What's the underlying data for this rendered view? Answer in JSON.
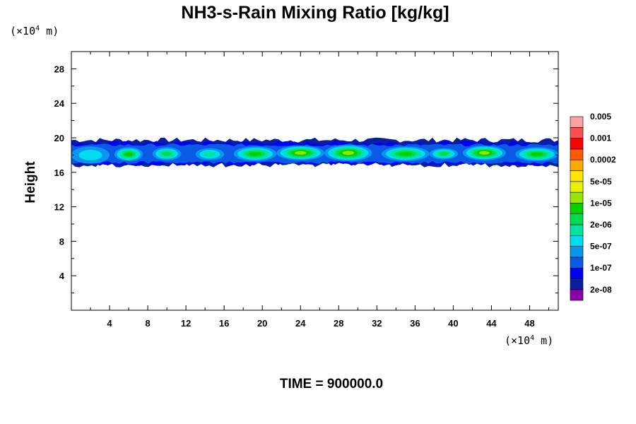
{
  "chart_data": {
    "type": "heatmap",
    "title": "NH3-s-Rain Mixing Ratio [kg/kg]",
    "ylabel": "Height",
    "xunit": {
      "prefix": "(×10",
      "exp": "4",
      "suffix": " m)"
    },
    "yunit": {
      "prefix": "(×10",
      "exp": "4",
      "suffix": " m)"
    },
    "xlim": [
      0,
      51
    ],
    "ylim": [
      0,
      30
    ],
    "x_ticks": [
      4,
      8,
      12,
      16,
      20,
      24,
      28,
      32,
      36,
      40,
      44,
      48
    ],
    "y_ticks": [
      4,
      8,
      12,
      16,
      20,
      24,
      28
    ],
    "x_tick_labels": [
      "4",
      "8",
      "12",
      "16",
      "20",
      "24",
      "28",
      "32",
      "36",
      "40",
      "44",
      "48"
    ],
    "y_tick_labels": [
      "4",
      "8",
      "12",
      "16",
      "20",
      "24",
      "28"
    ],
    "colorbar": {
      "colors": [
        "#8800aa",
        "#0a1ea0",
        "#0000f0",
        "#0a5ae6",
        "#0a96f0",
        "#00dcf0",
        "#00e6a0",
        "#00dc50",
        "#00d200",
        "#96e600",
        "#e6f000",
        "#ffe600",
        "#ffaa00",
        "#ff5a00",
        "#ff0000",
        "#ff5050",
        "#ffa0a0"
      ],
      "labels": [
        "2e-08",
        "1e-07",
        "5e-07",
        "2e-06",
        "1e-05",
        "5e-05",
        "0.0002",
        "0.001",
        "0.005"
      ],
      "label_level_index": [
        1,
        3,
        5,
        7,
        9,
        11,
        13,
        15,
        17
      ]
    },
    "layer": {
      "description_levels": "mixing ratio present only in a thin band near height 17-20 (x10^4 m)",
      "x_range": [
        0,
        51
      ],
      "bottom": 16.8,
      "top": 19.8,
      "blobs": [
        {
          "x": [
            0.0,
            4.0
          ],
          "y": [
            17.0,
            19.0
          ],
          "max_level": 5
        },
        {
          "x": [
            4.5,
            7.5
          ],
          "y": [
            17.3,
            18.9
          ],
          "max_level": 8
        },
        {
          "x": [
            8.5,
            11.5
          ],
          "y": [
            17.4,
            18.9
          ],
          "max_level": 7
        },
        {
          "x": [
            13.0,
            16.0
          ],
          "y": [
            17.4,
            18.8
          ],
          "max_level": 6
        },
        {
          "x": [
            17.0,
            21.5
          ],
          "y": [
            17.3,
            19.0
          ],
          "max_level": 8
        },
        {
          "x": [
            21.5,
            26.5
          ],
          "y": [
            17.4,
            19.1
          ],
          "max_level": 9
        },
        {
          "x": [
            26.5,
            31.5
          ],
          "y": [
            17.3,
            19.2
          ],
          "max_level": 9
        },
        {
          "x": [
            32.5,
            37.5
          ],
          "y": [
            17.3,
            19.0
          ],
          "max_level": 8
        },
        {
          "x": [
            37.5,
            40.5
          ],
          "y": [
            17.5,
            18.8
          ],
          "max_level": 7
        },
        {
          "x": [
            41.0,
            45.5
          ],
          "y": [
            17.4,
            19.1
          ],
          "max_level": 9
        },
        {
          "x": [
            46.5,
            51.0
          ],
          "y": [
            17.3,
            18.9
          ],
          "max_level": 8
        }
      ]
    }
  },
  "footer": {
    "time_label": "TIME = 900000.0"
  }
}
